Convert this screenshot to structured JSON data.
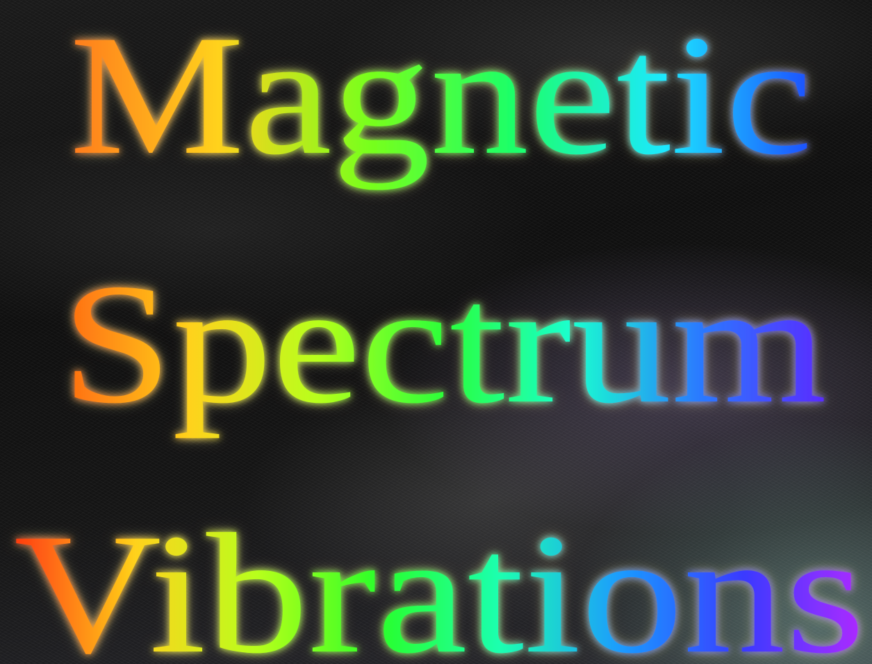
{
  "title": {
    "lines": [
      "Magnetic",
      "Spectrum",
      "Vibrations"
    ]
  },
  "colors": {
    "line1": [
      "#ff7a1a",
      "#ffd21a",
      "#7aff1a",
      "#1aff6a",
      "#1ae8ff",
      "#1a4dff"
    ],
    "line2": [
      "#ff6a10",
      "#ffd21a",
      "#b8ff1a",
      "#2aff3a",
      "#1affd0",
      "#2a7aff",
      "#5a2aff"
    ],
    "line3": [
      "#ff3a10",
      "#ffd21a",
      "#b8ff1a",
      "#2aff2a",
      "#1affb0",
      "#1a9aff",
      "#3a3aff",
      "#b02aff"
    ],
    "background": "#0b0b0b"
  }
}
